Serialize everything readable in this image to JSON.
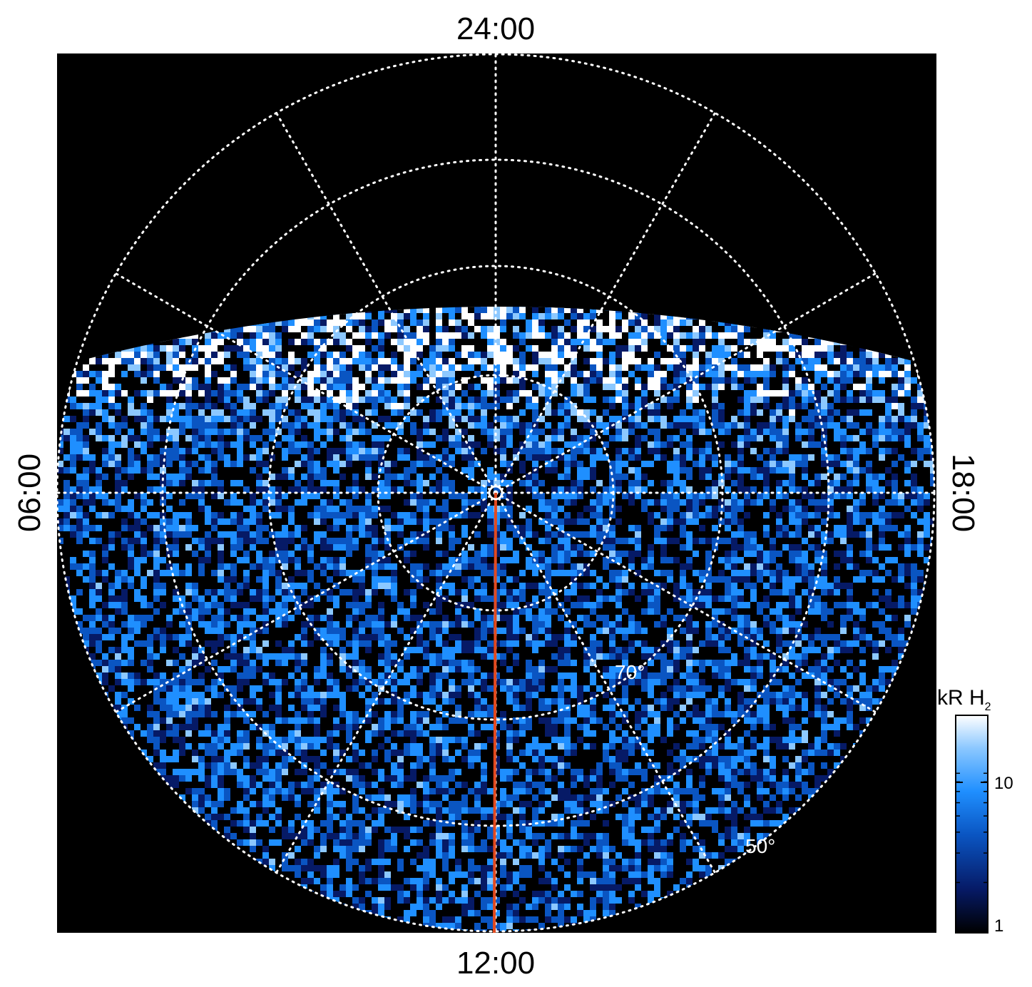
{
  "projection": {
    "type": "polar",
    "center_marker": "circle",
    "latitude_rings_deg": [
      50,
      60,
      70,
      80
    ],
    "meridian_step_hours": 2
  },
  "local_time_labels": {
    "top": "24:00",
    "bottom": "12:00",
    "left": "06:00",
    "right": "18:00"
  },
  "latitude_labels": {
    "inner": "70°",
    "outer": "50°"
  },
  "colorbar": {
    "title": "kR H",
    "title_subscript": "2",
    "scale": "log",
    "range": [
      1,
      20
    ],
    "tick_labels": [
      "1",
      "10"
    ],
    "tick_values": [
      1,
      10
    ],
    "colormap": [
      "#000000",
      "#061a66",
      "#0a55c2",
      "#1f8fff",
      "#8cc8ff",
      "#ffffff"
    ]
  },
  "colors": {
    "background": "#000000",
    "grid": "#ffffff",
    "meridian_line": "#e34a1f"
  }
}
